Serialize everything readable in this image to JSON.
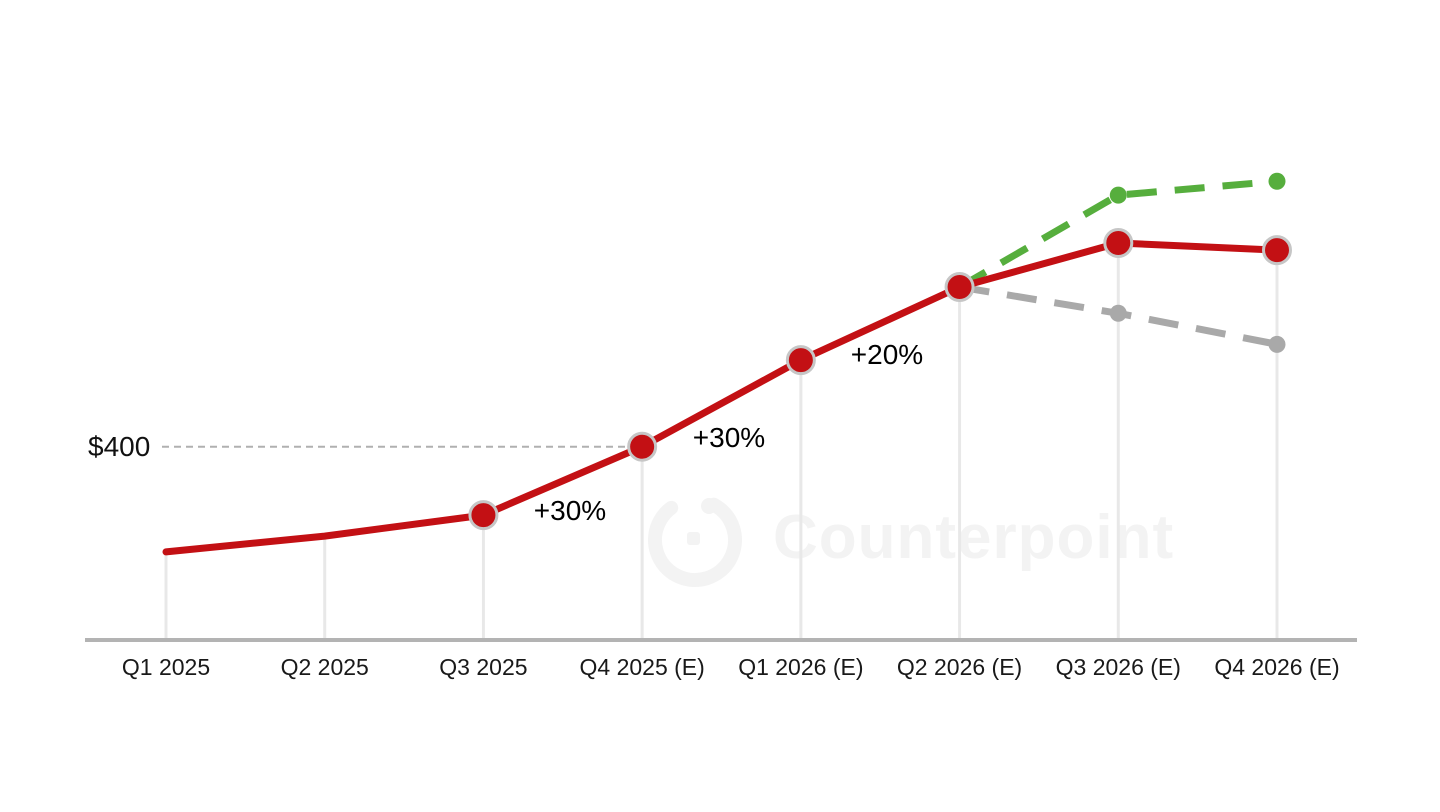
{
  "watermark": {
    "text": "Counterpoint",
    "logo": "counterpoint-ring-logo",
    "color": "#f3f3f3"
  },
  "chart_data": {
    "type": "line",
    "title": "",
    "xlabel": "",
    "ylabel": "",
    "categories": [
      "Q1 2025",
      "Q2 2025",
      "Q3 2025",
      "Q4 2025 (E)",
      "Q1 2026 (E)",
      "Q2 2026 (E)",
      "Q3 2026 (E)",
      "Q4 2026 (E)"
    ],
    "series": [
      {
        "name": "base-forecast",
        "color": "#c31014",
        "marker_ring_color": "#c6c6c6",
        "style": "solid",
        "values": [
          180,
          213,
          257,
          400,
          581,
          734,
          826,
          811
        ],
        "marker": "large-ring",
        "marker_indices": [
          2,
          3,
          4,
          5,
          6,
          7
        ]
      },
      {
        "name": "upside-scenario",
        "color": "#56ae3d",
        "style": "dashed",
        "values": [
          null,
          null,
          null,
          null,
          null,
          734,
          926,
          955
        ],
        "marker": "small",
        "marker_indices": [
          6,
          7
        ]
      },
      {
        "name": "downside-scenario",
        "color": "#a9a9a9",
        "style": "dashed",
        "values": [
          null,
          null,
          null,
          null,
          null,
          734,
          679,
          614
        ],
        "marker": "small",
        "marker_indices": [
          6,
          7
        ]
      }
    ],
    "ylim": [
      0,
      1150
    ],
    "grid": "vertical-drop-lines-only",
    "legend": "none",
    "reference_line": {
      "label": "$400",
      "value": 400,
      "to_category": "Q4 2025 (E)"
    },
    "annotations": [
      {
        "text": "+30%",
        "near_category": "Q3 2025"
      },
      {
        "text": "+30%",
        "near_category": "Q4 2025 (E)"
      },
      {
        "text": "+20%",
        "near_category": "Q1 2026 (E)"
      }
    ],
    "axis_color": "#b3b3b3",
    "drop_line_color": "#e8e8e8",
    "reference_line_color": "#b0b0b0"
  }
}
